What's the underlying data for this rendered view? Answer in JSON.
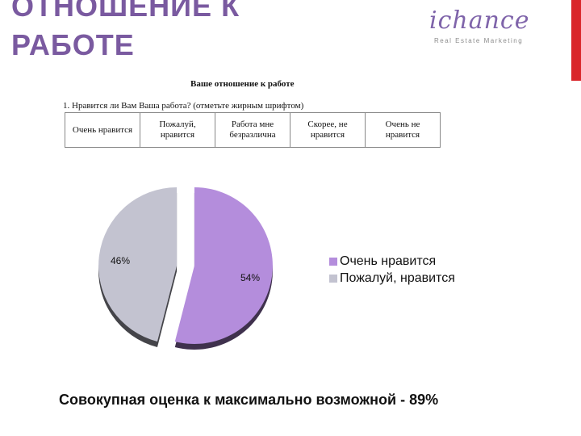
{
  "header": {
    "title_line_1": "ОТНОШЕНИЕ К",
    "title_line_2": "РАБОТЕ"
  },
  "logo": {
    "brand": "ichance",
    "tagline": "Real Estate Marketing"
  },
  "survey": {
    "title": "Ваше отношение к работе",
    "question": "1. Нравится ли Вам Ваша работа? (отметьте жирным шрифтом)",
    "options": [
      "Очень нравится",
      "Пожалуй, нравится",
      "Работа мне безразлична",
      "Скорее, не нравится",
      "Очень не нравится"
    ]
  },
  "chart_data": {
    "type": "pie",
    "title": "",
    "series": [
      {
        "name": "Очень нравится",
        "value": 54,
        "label": "54%",
        "color": "#b48ddc"
      },
      {
        "name": "Пожалуй, нравится",
        "value": 46,
        "label": "46%",
        "color": "#c3c3d0"
      }
    ],
    "legend_position": "right",
    "exploded": true
  },
  "footer": {
    "text": "Совокупная оценка к максимально возможной - 89%"
  },
  "colors": {
    "accent": "#7a5aa0",
    "top_bar": "#d9262a",
    "slice_1": "#b48ddc",
    "slice_2": "#c3c3d0"
  }
}
